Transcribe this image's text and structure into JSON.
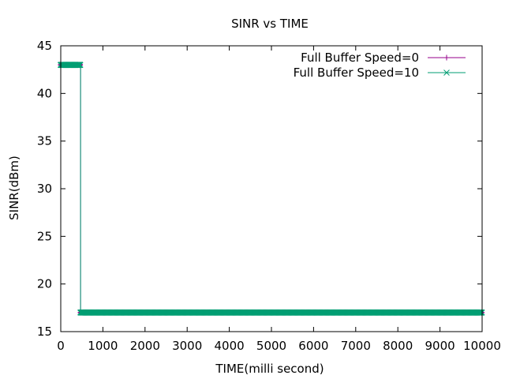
{
  "chart_data": {
    "type": "line",
    "title": "SINR vs TIME",
    "xlabel": "TIME(milli second)",
    "ylabel": "SINR(dBm)",
    "xlim": [
      0,
      10000
    ],
    "ylim": [
      15,
      45
    ],
    "xticks": [
      0,
      1000,
      2000,
      3000,
      4000,
      5000,
      6000,
      7000,
      8000,
      9000,
      10000
    ],
    "yticks": [
      15,
      20,
      25,
      30,
      35,
      40,
      45
    ],
    "grid": false,
    "legend_position": "top-right",
    "series": [
      {
        "name": "Full Buffer Speed=0",
        "color": "#94008b",
        "marker": "plus",
        "segments": [
          {
            "x_start": 0,
            "x_end": 470,
            "y": 43
          },
          {
            "x_start": 470,
            "x_end": 10000,
            "y": 17
          }
        ]
      },
      {
        "name": "Full Buffer Speed=10",
        "color": "#009e73",
        "marker": "cross",
        "segments": [
          {
            "x_start": 0,
            "x_end": 470,
            "y": 43
          },
          {
            "x_start": 470,
            "x_end": 10000,
            "y": 17
          }
        ]
      }
    ]
  }
}
